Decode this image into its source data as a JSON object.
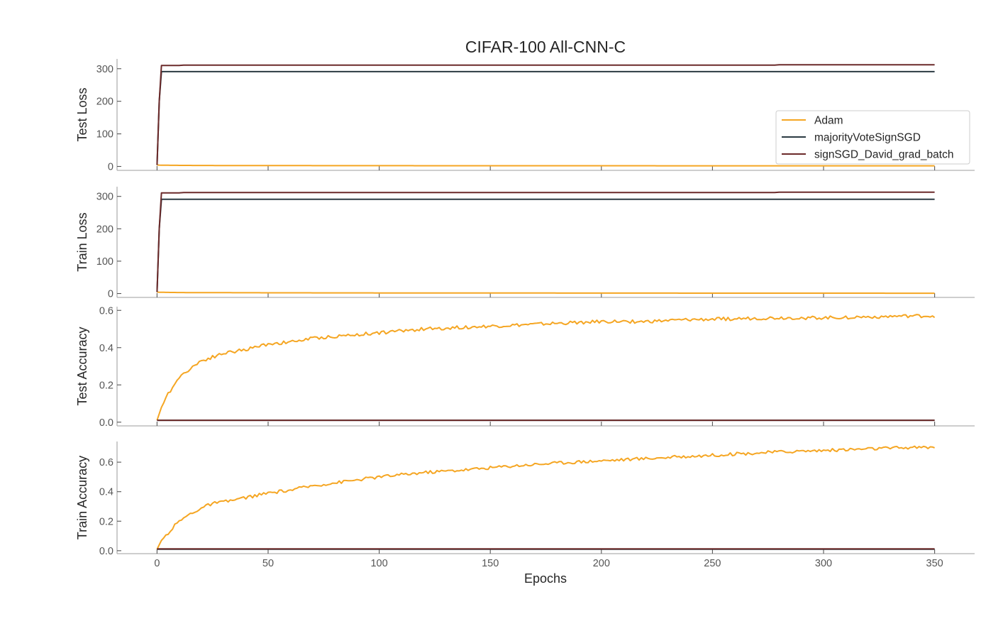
{
  "chart_data": {
    "type": "line",
    "title": "CIFAR-100 All-CNN-C",
    "xlabel": "Epochs",
    "xlim": [
      -18,
      368
    ],
    "x_ticks": [
      0,
      50,
      100,
      150,
      200,
      250,
      300,
      350
    ],
    "grid": false,
    "legend": {
      "placement": "right (inside top panel)",
      "entries": [
        "Adam",
        "majorityVoteSignSGD",
        "signSGD_David_grad_batch"
      ]
    },
    "colors": {
      "Adam": "#f5a623",
      "majorityVoteSignSGD": "#2b3a42",
      "signSGD_David_grad_batch": "#6b2a2a"
    },
    "panels": [
      {
        "ylabel": "Test Loss",
        "ylim": [
          -12,
          330
        ],
        "y_ticks": [
          0,
          100,
          200,
          300
        ],
        "series": [
          {
            "name": "Adam",
            "x": [
              0,
              1,
              5,
              10,
              20,
              50,
              100,
              150,
              200,
              250,
              300,
              350
            ],
            "y": [
              4.6,
              4.1,
              3.6,
              3.3,
              3.0,
              2.6,
              2.3,
              2.2,
              2.1,
              2.0,
              2.0,
              2.0
            ]
          },
          {
            "name": "majorityVoteSignSGD",
            "x": [
              0,
              1,
              2,
              350
            ],
            "y": [
              4.6,
              200,
              291,
              291
            ]
          },
          {
            "name": "signSGD_David_grad_batch",
            "x": [
              0,
              1,
              2,
              10,
              12,
              100,
              200,
              278,
              280,
              350
            ],
            "y": [
              4.6,
              200,
              310,
              310,
              311,
              311,
              311,
              311,
              312,
              312
            ]
          }
        ]
      },
      {
        "ylabel": "Train Loss",
        "ylim": [
          -12,
          330
        ],
        "y_ticks": [
          0,
          100,
          200,
          300
        ],
        "series": [
          {
            "name": "Adam",
            "x": [
              0,
              1,
              5,
              10,
              20,
              50,
              100,
              150,
              200,
              250,
              300,
              350
            ],
            "y": [
              4.6,
              4.0,
              3.5,
              3.1,
              2.8,
              2.3,
              1.9,
              1.6,
              1.4,
              1.2,
              1.1,
              1.0
            ]
          },
          {
            "name": "majorityVoteSignSGD",
            "x": [
              0,
              1,
              2,
              350
            ],
            "y": [
              4.6,
              200,
              291,
              291
            ]
          },
          {
            "name": "signSGD_David_grad_batch",
            "x": [
              0,
              1,
              2,
              10,
              12,
              100,
              200,
              278,
              280,
              350
            ],
            "y": [
              4.6,
              200,
              311,
              311,
              312,
              312,
              312,
              312,
              313,
              313
            ]
          }
        ]
      },
      {
        "ylabel": "Test Accuracy",
        "ylim": [
          -0.02,
          0.62
        ],
        "y_ticks": [
          0.0,
          0.2,
          0.4,
          0.6
        ],
        "y_tick_labels": [
          "0.0",
          "0.2",
          "0.4",
          "0.6"
        ],
        "series": [
          {
            "name": "Adam",
            "x": [
              0,
              2,
              5,
              8,
              10,
              15,
              20,
              25,
              30,
              40,
              50,
              60,
              70,
              80,
              90,
              100,
              120,
              140,
              160,
              180,
              200,
              220,
              240,
              260,
              280,
              300,
              320,
              340,
              350
            ],
            "y": [
              0.01,
              0.08,
              0.15,
              0.21,
              0.24,
              0.29,
              0.33,
              0.35,
              0.37,
              0.39,
              0.42,
              0.43,
              0.45,
              0.46,
              0.47,
              0.48,
              0.5,
              0.51,
              0.52,
              0.53,
              0.54,
              0.54,
              0.55,
              0.555,
              0.56,
              0.56,
              0.565,
              0.57,
              0.57
            ]
          },
          {
            "name": "majorityVoteSignSGD",
            "x": [
              0,
              350
            ],
            "y": [
              0.01,
              0.01
            ]
          },
          {
            "name": "signSGD_David_grad_batch",
            "x": [
              0,
              350
            ],
            "y": [
              0.01,
              0.01
            ]
          }
        ]
      },
      {
        "ylabel": "Train Accuracy",
        "ylim": [
          -0.02,
          0.74
        ],
        "y_ticks": [
          0.0,
          0.2,
          0.4,
          0.6
        ],
        "y_tick_labels": [
          "0.0",
          "0.2",
          "0.4",
          "0.6"
        ],
        "series": [
          {
            "name": "Adam",
            "x": [
              0,
              2,
              5,
              8,
              10,
              15,
              20,
              25,
              30,
              40,
              50,
              60,
              70,
              80,
              90,
              100,
              120,
              140,
              160,
              180,
              200,
              220,
              240,
              260,
              280,
              300,
              320,
              340,
              350
            ],
            "y": [
              0.01,
              0.07,
              0.12,
              0.17,
              0.2,
              0.25,
              0.29,
              0.32,
              0.33,
              0.36,
              0.39,
              0.41,
              0.44,
              0.46,
              0.48,
              0.5,
              0.53,
              0.55,
              0.575,
              0.595,
              0.61,
              0.625,
              0.64,
              0.655,
              0.67,
              0.68,
              0.69,
              0.7,
              0.7
            ]
          },
          {
            "name": "majorityVoteSignSGD",
            "x": [
              0,
              350
            ],
            "y": [
              0.01,
              0.01
            ]
          },
          {
            "name": "signSGD_David_grad_batch",
            "x": [
              0,
              350
            ],
            "y": [
              0.012,
              0.012
            ]
          }
        ]
      }
    ]
  }
}
